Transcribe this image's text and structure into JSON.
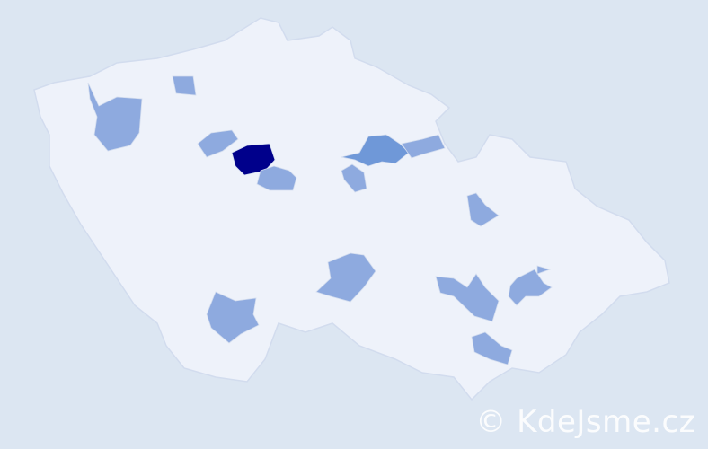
{
  "map": {
    "country_fill": "#eef2fa",
    "border_color": "#d2dcee",
    "colors": {
      "low": "#8eaadf",
      "mid": "#6f98d8",
      "high": "#00008b"
    },
    "regions": [
      {
        "level": "high"
      },
      {
        "level": "mid"
      },
      {
        "level": "low"
      },
      {
        "level": "low"
      },
      {
        "level": "low"
      },
      {
        "level": "low"
      },
      {
        "level": "low"
      },
      {
        "level": "low"
      },
      {
        "level": "low"
      },
      {
        "level": "low"
      },
      {
        "level": "low"
      },
      {
        "level": "low"
      },
      {
        "level": "low"
      },
      {
        "level": "low"
      },
      {
        "level": "low"
      }
    ]
  },
  "watermark": {
    "text": "© KdeJsme.cz"
  }
}
